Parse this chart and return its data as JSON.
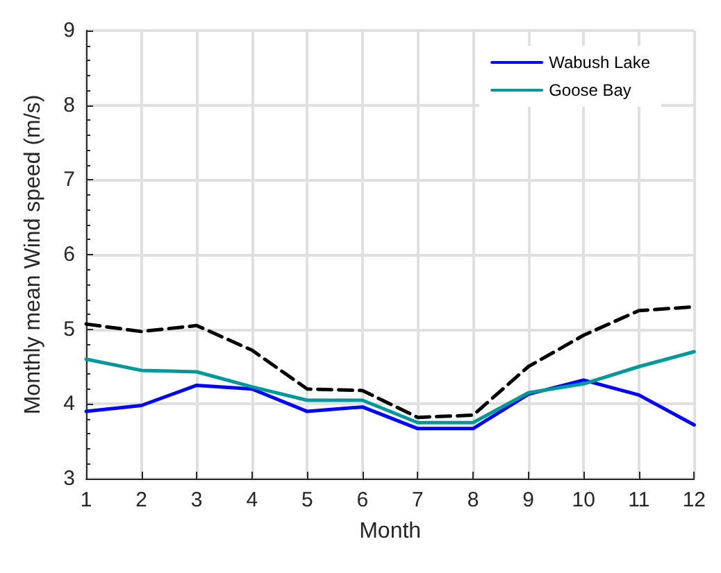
{
  "chart_data": {
    "type": "line",
    "xlabel": "Month",
    "ylabel": "Monthly mean Wind speed (m/s)",
    "x": [
      1,
      2,
      3,
      4,
      5,
      6,
      7,
      8,
      9,
      10,
      11,
      12
    ],
    "series": [
      {
        "name": "Wabush Lake",
        "color": "#0000ff",
        "values": [
          3.9,
          3.98,
          4.25,
          4.2,
          3.9,
          3.96,
          3.67,
          3.67,
          4.13,
          4.32,
          4.12,
          3.72
        ]
      },
      {
        "name": "Goose Bay",
        "color": "#009999",
        "values": [
          4.6,
          4.45,
          4.43,
          4.23,
          4.05,
          4.05,
          3.75,
          3.75,
          4.15,
          4.27,
          4.5,
          4.7
        ]
      },
      {
        "color": "#000000",
        "line_style": "dashed",
        "values": [
          5.07,
          4.97,
          5.05,
          4.72,
          4.2,
          4.18,
          3.82,
          3.85,
          4.5,
          4.92,
          5.25,
          5.3
        ]
      }
    ],
    "xlim": [
      1,
      12
    ],
    "xticks": [
      1,
      2,
      3,
      4,
      5,
      6,
      7,
      8,
      9,
      10,
      11,
      12
    ],
    "ylim": [
      3,
      9
    ],
    "yticks": [
      3,
      4,
      5,
      6,
      7,
      8,
      9
    ],
    "grid": true,
    "legend": "top right"
  }
}
